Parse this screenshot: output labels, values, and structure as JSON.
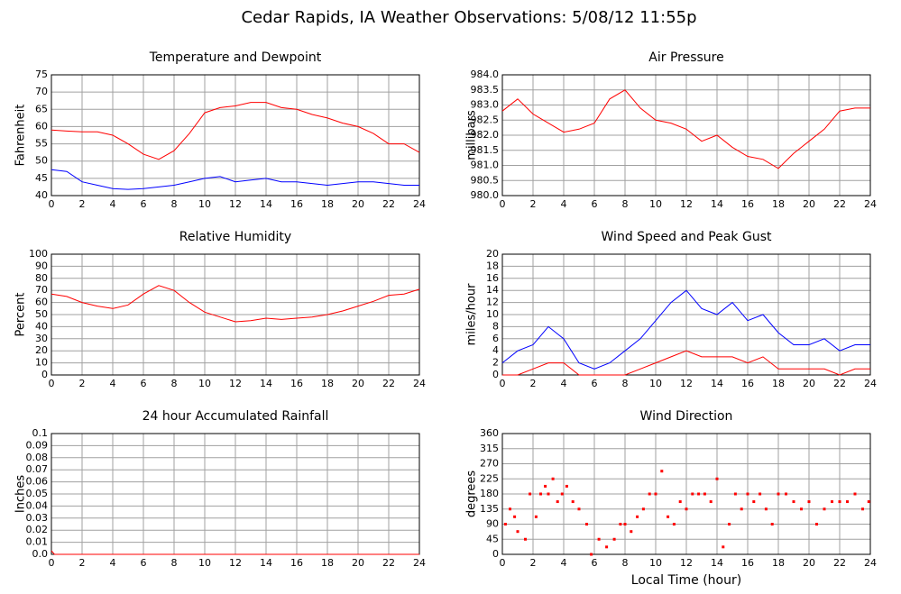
{
  "title": "Cedar Rapids, IA Weather Observations: 5/08/12 11:55p",
  "chart_data": [
    {
      "type": "line",
      "title": "Temperature and Dewpoint",
      "y_label": "Fahrenheit",
      "x": [
        0,
        1,
        2,
        3,
        4,
        5,
        6,
        7,
        8,
        9,
        10,
        11,
        12,
        13,
        14,
        15,
        16,
        17,
        18,
        19,
        20,
        21,
        22,
        23,
        24
      ],
      "series": [
        {
          "color": "#ff0000",
          "values": [
            59,
            58.7,
            58.5,
            58.5,
            57.5,
            55,
            52,
            50.5,
            53,
            58,
            64,
            65.5,
            66,
            67,
            67,
            65.5,
            65,
            63.5,
            62.5,
            61,
            60,
            58,
            55,
            55,
            52.5
          ]
        },
        {
          "color": "#0000ff",
          "values": [
            47.5,
            47,
            44,
            43,
            42,
            41.8,
            42,
            42.5,
            43,
            44,
            45,
            45.5,
            44,
            44.5,
            45,
            44,
            44,
            43.5,
            43,
            43.5,
            44,
            44,
            43.5,
            43,
            43
          ]
        }
      ],
      "xlim": [
        0,
        24
      ],
      "xticks": [
        0,
        2,
        4,
        6,
        8,
        10,
        12,
        14,
        16,
        18,
        20,
        22,
        24
      ],
      "ylim": [
        40,
        75
      ],
      "yticks": [
        40,
        45,
        50,
        55,
        60,
        65,
        70,
        75
      ],
      "grid": true
    },
    {
      "type": "line",
      "title": "Air Pressure",
      "y_label": "millibars",
      "x": [
        0,
        1,
        2,
        3,
        4,
        5,
        6,
        7,
        8,
        9,
        10,
        11,
        12,
        13,
        14,
        15,
        16,
        17,
        18,
        19,
        20,
        21,
        22,
        23,
        24
      ],
      "series": [
        {
          "color": "#ff0000",
          "values": [
            982.8,
            983.2,
            982.7,
            982.4,
            982.1,
            982.2,
            982.4,
            983.2,
            983.5,
            982.9,
            982.5,
            982.4,
            982.2,
            981.8,
            982.0,
            981.6,
            981.3,
            981.2,
            980.9,
            981.4,
            981.8,
            982.2,
            982.8,
            982.9,
            982.9
          ]
        }
      ],
      "xlim": [
        0,
        24
      ],
      "xticks": [
        0,
        2,
        4,
        6,
        8,
        10,
        12,
        14,
        16,
        18,
        20,
        22,
        24
      ],
      "ylim": [
        980,
        984
      ],
      "yticks": [
        {
          "value": 980,
          "label": "980.0"
        },
        980.5,
        {
          "value": 981,
          "label": "981.0"
        },
        981.5,
        {
          "value": 982,
          "label": "982.0"
        },
        982.5,
        {
          "value": 983,
          "label": "983.0"
        },
        983.5,
        {
          "value": 984,
          "label": "984.0"
        }
      ],
      "grid": true
    },
    {
      "type": "line",
      "title": "Relative Humidity",
      "y_label": "Percent",
      "x": [
        0,
        1,
        2,
        3,
        4,
        5,
        6,
        7,
        8,
        9,
        10,
        11,
        12,
        13,
        14,
        15,
        16,
        17,
        18,
        19,
        20,
        21,
        22,
        23,
        24
      ],
      "series": [
        {
          "color": "#ff0000",
          "values": [
            67,
            65,
            60,
            57,
            55,
            58,
            67,
            74,
            70,
            60,
            52,
            48,
            44,
            45,
            47,
            46,
            47,
            48,
            50,
            53,
            57,
            61,
            66,
            67,
            71
          ]
        }
      ],
      "xlim": [
        0,
        24
      ],
      "xticks": [
        0,
        2,
        4,
        6,
        8,
        10,
        12,
        14,
        16,
        18,
        20,
        22,
        24
      ],
      "ylim": [
        0,
        100
      ],
      "yticks": [
        0,
        10,
        20,
        30,
        40,
        50,
        60,
        70,
        80,
        90,
        100
      ],
      "grid": true
    },
    {
      "type": "line",
      "title": "Wind Speed and Peak Gust",
      "y_label": "miles/hour",
      "x": [
        0,
        1,
        2,
        3,
        4,
        5,
        6,
        7,
        8,
        9,
        10,
        11,
        12,
        13,
        14,
        15,
        16,
        17,
        18,
        19,
        20,
        21,
        22,
        23,
        24
      ],
      "series": [
        {
          "color": "#0000ff",
          "values": [
            2,
            4,
            5,
            8,
            6,
            2,
            1,
            2,
            4,
            6,
            9,
            12,
            14,
            11,
            10,
            12,
            9,
            10,
            7,
            5,
            5,
            6,
            4,
            5,
            5
          ]
        },
        {
          "color": "#ff0000",
          "values": [
            0,
            0,
            1,
            2,
            2,
            0,
            0,
            0,
            0,
            1,
            2,
            3,
            4,
            3,
            3,
            3,
            2,
            3,
            1,
            1,
            1,
            1,
            0,
            1,
            1
          ]
        }
      ],
      "xlim": [
        0,
        24
      ],
      "xticks": [
        0,
        2,
        4,
        6,
        8,
        10,
        12,
        14,
        16,
        18,
        20,
        22,
        24
      ],
      "ylim": [
        0,
        20
      ],
      "yticks": [
        0,
        2,
        4,
        6,
        8,
        10,
        12,
        14,
        16,
        18,
        20
      ],
      "grid": true
    },
    {
      "type": "line",
      "title": "24 hour Accumulated Rainfall",
      "y_label": "Inches",
      "x": [
        0,
        0.2,
        24
      ],
      "series": [
        {
          "color": "#ff0000",
          "values": [
            0.003,
            0,
            0
          ]
        }
      ],
      "xlim": [
        0,
        24
      ],
      "xticks": [
        0,
        2,
        4,
        6,
        8,
        10,
        12,
        14,
        16,
        18,
        20,
        22,
        24
      ],
      "ylim": [
        0,
        0.1
      ],
      "yticks": [
        {
          "value": 0,
          "label": "0.0"
        },
        0.01,
        0.02,
        0.03,
        0.04,
        0.05,
        0.06,
        0.07,
        0.08,
        0.09,
        0.1
      ],
      "grid": true
    },
    {
      "type": "scatter",
      "title": "Wind Direction",
      "y_label": "degrees",
      "x_label": "Local Time (hour)",
      "x": [
        0.2,
        0.5,
        0.8,
        1.0,
        1.5,
        1.8,
        2.2,
        2.5,
        2.8,
        3.0,
        3.3,
        3.6,
        3.9,
        4.2,
        4.6,
        5.0,
        5.5,
        5.8,
        6.3,
        6.8,
        7.3,
        7.7,
        8.0,
        8.4,
        8.8,
        9.2,
        9.6,
        10.0,
        10.4,
        10.8,
        11.2,
        11.6,
        12.0,
        12.4,
        12.8,
        13.2,
        13.6,
        14.0,
        14.4,
        14.8,
        15.2,
        15.6,
        16.0,
        16.4,
        16.8,
        17.2,
        17.6,
        18.0,
        18.5,
        19.0,
        19.5,
        20.0,
        20.5,
        21.0,
        21.5,
        22.0,
        22.5,
        23.0,
        23.5,
        23.9
      ],
      "series": [
        {
          "color": "#ff0000",
          "values": [
            90,
            135,
            112,
            68,
            45,
            180,
            112,
            180,
            203,
            180,
            225,
            157,
            180,
            203,
            157,
            135,
            90,
            0,
            45,
            22,
            45,
            90,
            90,
            68,
            112,
            135,
            180,
            180,
            248,
            112,
            90,
            157,
            135,
            180,
            180,
            180,
            157,
            225,
            22,
            90,
            180,
            135,
            180,
            157,
            180,
            135,
            90,
            180,
            180,
            157,
            135,
            157,
            90,
            135,
            157,
            157,
            157,
            180,
            135,
            157
          ]
        }
      ],
      "xlim": [
        0,
        24
      ],
      "xticks": [
        0,
        2,
        4,
        6,
        8,
        10,
        12,
        14,
        16,
        18,
        20,
        22,
        24
      ],
      "ylim": [
        0,
        360
      ],
      "yticks": [
        0,
        45,
        90,
        135,
        180,
        225,
        270,
        315,
        360
      ],
      "grid": true
    }
  ]
}
